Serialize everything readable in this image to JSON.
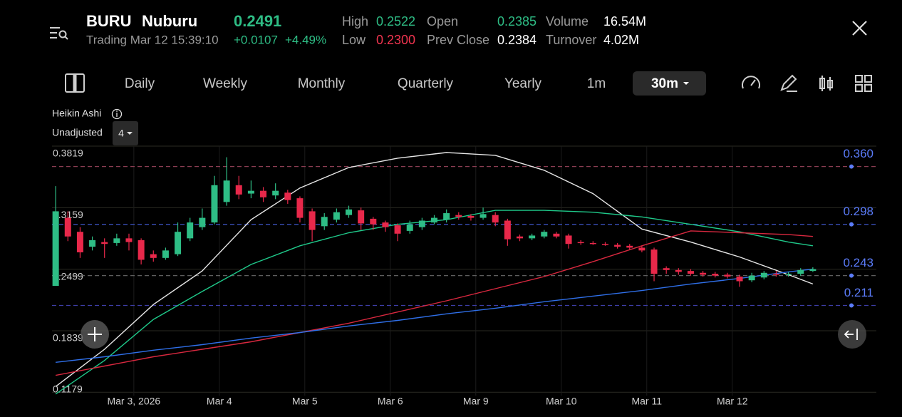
{
  "header": {
    "symbol": "BURU",
    "name": "Nuburu",
    "price": "0.2491",
    "status": "Trading Mar 12 15:39:10",
    "change": "+0.0107",
    "change_pct": "+4.49%",
    "stats": [
      {
        "label": "High",
        "value": "0.2522",
        "color": "#2ebd85"
      },
      {
        "label": "Low",
        "value": "0.2300",
        "color": "#f0344f"
      },
      {
        "label": "Open",
        "value": "0.2385",
        "color": "#2ebd85"
      },
      {
        "label": "Prev Close",
        "value": "0.2384",
        "color": "#ffffff"
      },
      {
        "label": "Volume",
        "value": "16.54M",
        "color": "#ffffff"
      },
      {
        "label": "Turnover",
        "value": "4.02M",
        "color": "#ffffff"
      }
    ]
  },
  "toolbar": {
    "periods": [
      "Daily",
      "Weekly",
      "Monthly",
      "Quarterly",
      "Yearly",
      "1m"
    ],
    "active_period": "30m"
  },
  "chart_info": {
    "style": "Heikin Ashi",
    "adjust": "Unadjusted",
    "count": "4"
  },
  "chart_data": {
    "type": "candlestick",
    "up_color": "#2ebd85",
    "down_color": "#e8284a",
    "open": [
      0.232,
      0.305,
      0.29,
      0.274,
      0.279,
      0.278,
      0.283,
      0.281,
      0.266,
      0.262,
      0.266,
      0.283,
      0.295,
      0.3,
      0.322,
      0.34,
      0.331,
      0.334,
      0.329,
      0.332,
      0.326,
      0.312,
      0.296,
      0.303,
      0.308,
      0.313,
      0.304,
      0.3,
      0.297,
      0.291,
      0.295,
      0.3,
      0.303,
      0.308,
      0.307,
      0.305,
      0.308,
      0.302,
      0.285,
      0.283,
      0.285,
      0.288,
      0.286,
      0.279,
      0.278,
      0.277,
      0.276,
      0.275,
      0.273,
      0.271,
      0.251,
      0.249,
      0.248,
      0.246,
      0.245,
      0.244,
      0.242,
      0.238,
      0.241,
      0.245,
      0.244,
      0.245,
      0.248
    ],
    "close": [
      0.312,
      0.285,
      0.268,
      0.281,
      0.277,
      0.283,
      0.279,
      0.26,
      0.262,
      0.27,
      0.29,
      0.3,
      0.305,
      0.34,
      0.345,
      0.33,
      0.334,
      0.327,
      0.334,
      0.324,
      0.305,
      0.292,
      0.306,
      0.311,
      0.314,
      0.299,
      0.298,
      0.295,
      0.288,
      0.298,
      0.302,
      0.305,
      0.31,
      0.306,
      0.305,
      0.309,
      0.3,
      0.282,
      0.283,
      0.286,
      0.29,
      0.285,
      0.277,
      0.278,
      0.277,
      0.276,
      0.274,
      0.273,
      0.27,
      0.245,
      0.249,
      0.247,
      0.245,
      0.244,
      0.243,
      0.242,
      0.237,
      0.243,
      0.246,
      0.244,
      0.245,
      0.249,
      0.25
    ],
    "high": [
      0.339,
      0.312,
      0.295,
      0.285,
      0.283,
      0.288,
      0.288,
      0.283,
      0.27,
      0.273,
      0.3,
      0.305,
      0.315,
      0.35,
      0.37,
      0.35,
      0.345,
      0.338,
      0.342,
      0.335,
      0.328,
      0.315,
      0.31,
      0.315,
      0.318,
      0.316,
      0.306,
      0.302,
      0.299,
      0.302,
      0.305,
      0.308,
      0.314,
      0.311,
      0.309,
      0.316,
      0.311,
      0.304,
      0.287,
      0.288,
      0.292,
      0.29,
      0.288,
      0.281,
      0.28,
      0.279,
      0.278,
      0.277,
      0.275,
      0.273,
      0.253,
      0.251,
      0.25,
      0.248,
      0.247,
      0.246,
      0.244,
      0.246,
      0.248,
      0.248,
      0.247,
      0.251,
      0.252
    ],
    "low": [
      0.232,
      0.28,
      0.262,
      0.27,
      0.262,
      0.275,
      0.27,
      0.255,
      0.258,
      0.26,
      0.264,
      0.28,
      0.292,
      0.298,
      0.318,
      0.325,
      0.326,
      0.322,
      0.325,
      0.32,
      0.3,
      0.28,
      0.292,
      0.3,
      0.305,
      0.292,
      0.292,
      0.29,
      0.28,
      0.288,
      0.292,
      0.298,
      0.3,
      0.303,
      0.302,
      0.303,
      0.296,
      0.275,
      0.28,
      0.281,
      0.283,
      0.283,
      0.272,
      0.276,
      0.276,
      0.275,
      0.272,
      0.271,
      0.268,
      0.237,
      0.245,
      0.244,
      0.243,
      0.242,
      0.241,
      0.24,
      0.231,
      0.236,
      0.239,
      0.242,
      0.242,
      0.243,
      0.247
    ],
    "lines": {
      "x": [
        0,
        4,
        8,
        12,
        16,
        20,
        24,
        28,
        32,
        36,
        40,
        44,
        48,
        52,
        56,
        60,
        62
      ],
      "series": [
        {
          "color": "#e6e6e6",
          "values": [
            0.124,
            0.164,
            0.212,
            0.248,
            0.303,
            0.337,
            0.359,
            0.369,
            0.375,
            0.372,
            0.356,
            0.331,
            0.293,
            0.279,
            0.263,
            0.244,
            0.234
          ]
        },
        {
          "color": "#1fc98a",
          "values": [
            0.116,
            0.152,
            0.196,
            0.226,
            0.255,
            0.275,
            0.289,
            0.298,
            0.303,
            0.313,
            0.313,
            0.311,
            0.306,
            0.298,
            0.29,
            0.279,
            0.275
          ]
        },
        {
          "color": "#d8283f",
          "values": [
            0.136,
            0.146,
            0.156,
            0.164,
            0.172,
            0.182,
            0.192,
            0.204,
            0.216,
            0.229,
            0.242,
            0.258,
            0.275,
            0.291,
            0.289,
            0.287,
            0.285
          ]
        },
        {
          "color": "#2f6fe8",
          "values": [
            0.15,
            0.156,
            0.163,
            0.169,
            0.176,
            0.182,
            0.189,
            0.195,
            0.202,
            0.208,
            0.215,
            0.221,
            0.227,
            0.234,
            0.24,
            0.247,
            0.25
          ]
        }
      ]
    },
    "price_lines": [
      {
        "value": 0.36,
        "label": "0.360",
        "color": "#8a3d52"
      },
      {
        "value": 0.298,
        "label": "0.298",
        "color": "#3e55c8"
      },
      {
        "value": 0.243,
        "label": "0.243",
        "color": "#6b6b6b"
      },
      {
        "value": 0.211,
        "label": "0.211",
        "color": "#3e3ea8"
      }
    ],
    "label_color": "#5b7cfa",
    "xlim": [
      -0.3,
      67.2
    ],
    "xticks": [
      {
        "value": 6.4,
        "label": "Mar 3, 2026"
      },
      {
        "value": 13.4,
        "label": "Mar 4"
      },
      {
        "value": 20.4,
        "label": "Mar 5"
      },
      {
        "value": 27.4,
        "label": "Mar 6"
      },
      {
        "value": 34.4,
        "label": "Mar 9"
      },
      {
        "value": 41.4,
        "label": "Mar 10"
      },
      {
        "value": 48.4,
        "label": "Mar 11"
      },
      {
        "value": 55.4,
        "label": "Mar 12"
      }
    ],
    "ylim": [
      0.1143,
      0.3819
    ],
    "yticks": [
      0.3819,
      0.3159,
      0.2499,
      0.1839,
      0.1179
    ],
    "grid": true
  }
}
